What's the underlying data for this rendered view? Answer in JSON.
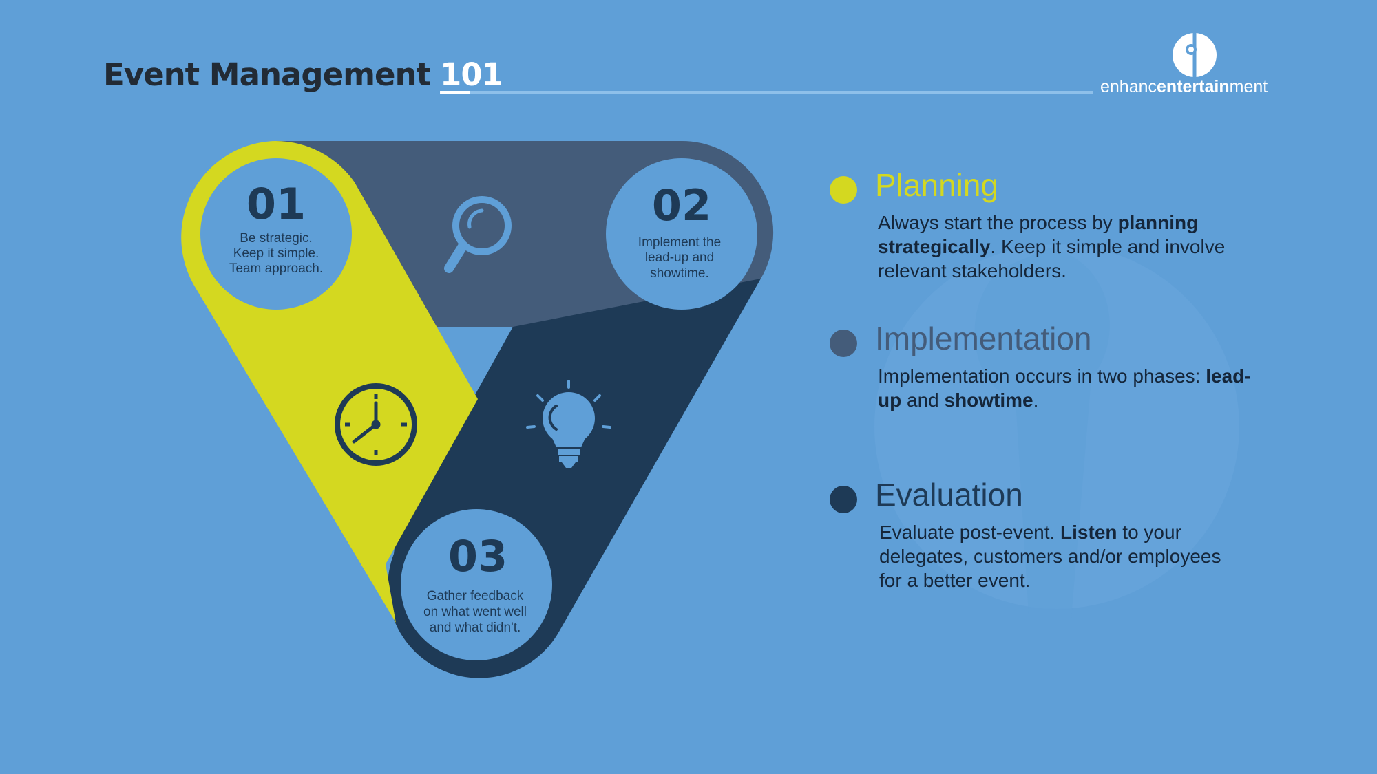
{
  "header": {
    "title": "Event Management",
    "title_number": "101"
  },
  "brand": {
    "logo_icon": "enhance-logo-icon",
    "name_light_1": "enhanc",
    "name_bold": "entertain",
    "name_light_2": "ment"
  },
  "colors": {
    "background": "#5f9fd7",
    "planning": "#d4d820",
    "implementation": "#445c7a",
    "evaluation": "#1e3a56",
    "circle": "#5f9fd7"
  },
  "diagram": {
    "steps": [
      {
        "number": "01",
        "lines": [
          "Be strategic.",
          "Keep it simple.",
          "Team approach."
        ]
      },
      {
        "number": "02",
        "lines": [
          "Implement the",
          "lead-up and",
          "showtime."
        ]
      },
      {
        "number": "03",
        "lines": [
          "Gather feedback",
          "on what went well",
          "and what didn't."
        ]
      }
    ],
    "icons": [
      "magnifier-icon",
      "clock-icon",
      "lightbulb-icon"
    ]
  },
  "legend": [
    {
      "title": "Planning",
      "body": [
        {
          "t": "Always start the process by ",
          "b": false
        },
        {
          "t": "planning strategically",
          "b": true
        },
        {
          "t": ". Keep it simple and involve relevant stakeholders.",
          "b": false
        }
      ]
    },
    {
      "title": "Implementation",
      "body": [
        {
          "t": "Implementation occurs in two phases: ",
          "b": false
        },
        {
          "t": "lead-up",
          "b": true
        },
        {
          "t": " and ",
          "b": false
        },
        {
          "t": "showtime",
          "b": true
        },
        {
          "t": ".",
          "b": false
        }
      ]
    },
    {
      "title": "Evaluation",
      "body": [
        {
          "t": "Evaluate post-event. ",
          "b": false
        },
        {
          "t": "Listen",
          "b": true
        },
        {
          "t": " to your delegates, customers and/or employees for a better event.",
          "b": false
        }
      ]
    }
  ]
}
